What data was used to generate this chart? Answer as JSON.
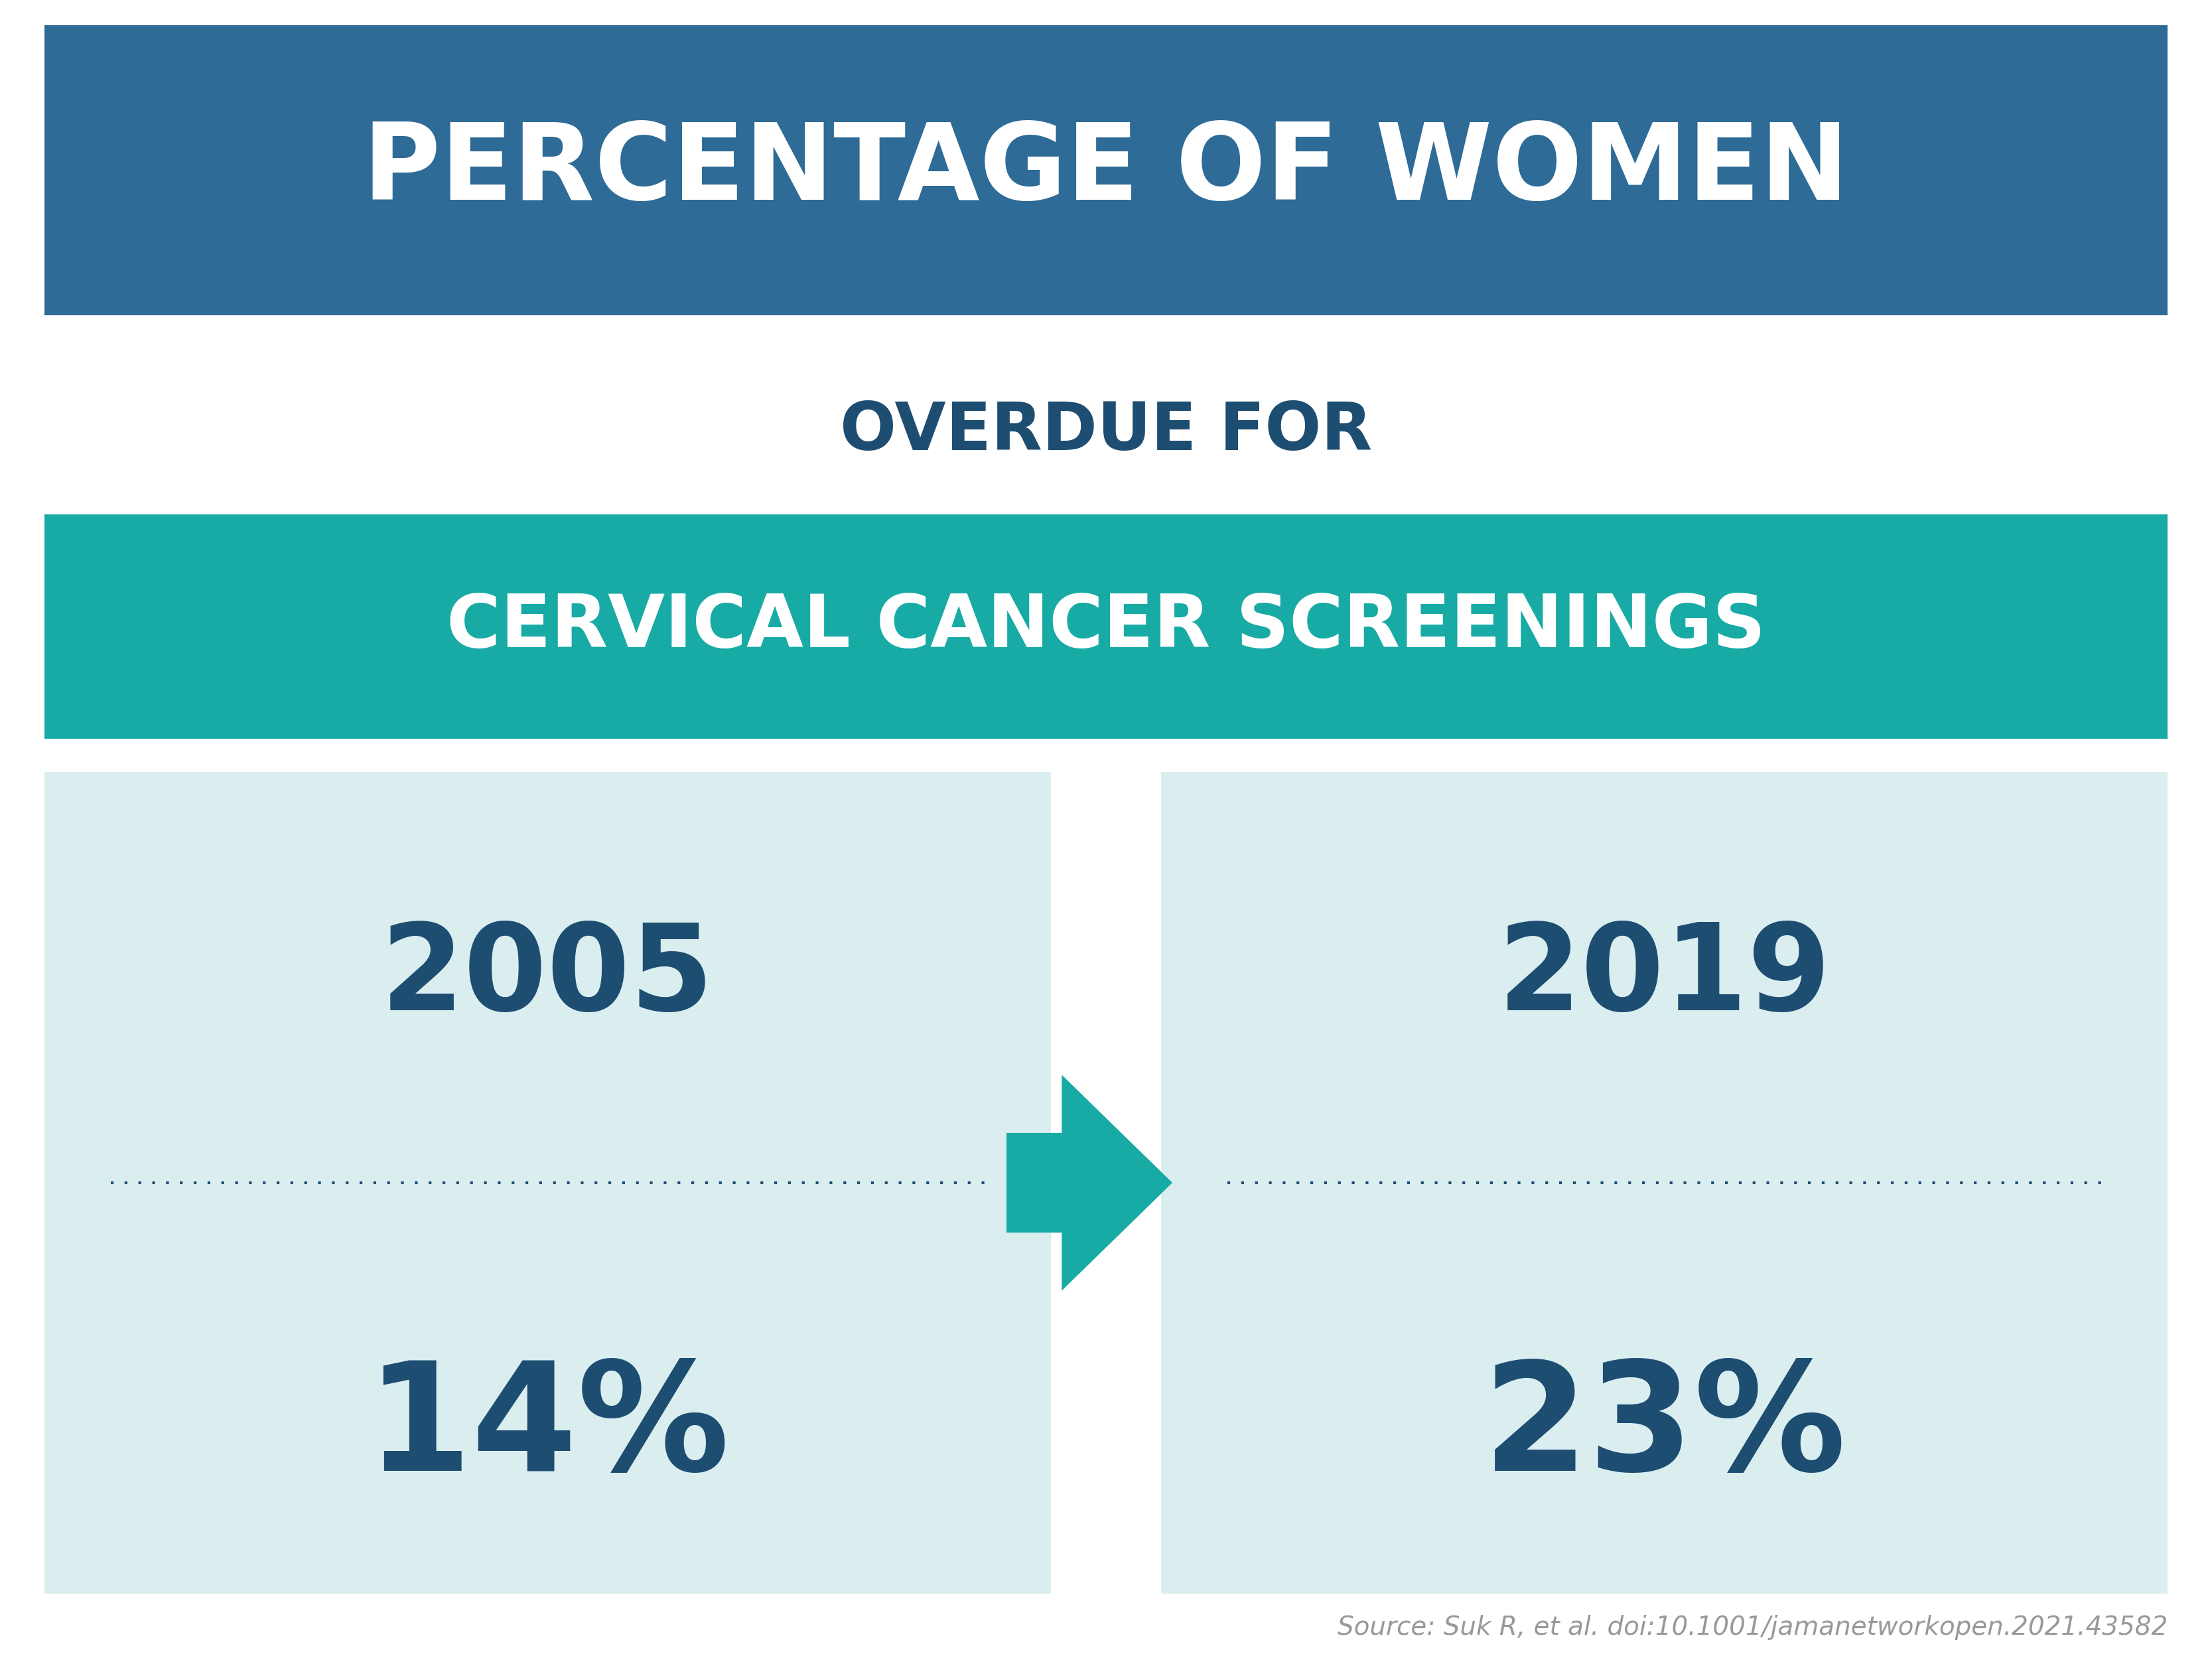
{
  "title_line1": "PERCENTAGE OF WOMEN",
  "title_line2": "OVERDUE FOR",
  "title_line3": "CERVICAL CANCER SCREENINGS",
  "year_left": "2005",
  "year_right": "2019",
  "pct_left": "14%",
  "pct_right": "23%",
  "source_text": "Source: Suk R, et al. doi:10.1001/jamanetworkopen.2021.43582",
  "color_white": "#ffffff",
  "color_light_bg": "#daeef0",
  "color_bg": "#ffffff",
  "color_source": "#999999",
  "banner1_color": "#2e6b96",
  "banner2_color": "#18aaa4",
  "text_dark": "#1e4d72"
}
